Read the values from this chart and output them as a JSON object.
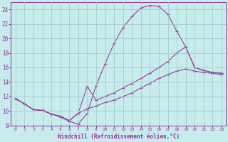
{
  "background_color": "#c6ecec",
  "grid_color": "#a0c8c8",
  "line_color": "#993399",
  "spine_color": "#993399",
  "xlabel": "Windchill (Refroidissement éolien,°C)",
  "xmin": -0.5,
  "xmax": 23.5,
  "ymin": 8,
  "ymax": 25,
  "ytick_vals": [
    8,
    10,
    12,
    14,
    16,
    18,
    20,
    22,
    24
  ],
  "xtick_vals": [
    0,
    1,
    2,
    3,
    4,
    5,
    6,
    7,
    8,
    9,
    10,
    11,
    12,
    13,
    14,
    15,
    16,
    17,
    18,
    19,
    20,
    21,
    22,
    23
  ],
  "curve1_x": [
    0,
    1,
    2,
    3,
    4,
    5,
    6,
    7,
    8,
    9,
    10,
    11,
    12,
    13,
    14,
    15,
    16,
    17,
    18,
    19,
    20,
    21,
    22,
    23
  ],
  "curve1_y": [
    11.7,
    11.0,
    10.2,
    10.1,
    9.6,
    9.2,
    8.6,
    8.2,
    9.7,
    13.5,
    16.5,
    19.3,
    21.5,
    23.0,
    24.2,
    24.5,
    24.4,
    23.3,
    21.0,
    18.8,
    16.0,
    15.6,
    15.3,
    15.2
  ],
  "curve2_x": [
    0,
    1,
    2,
    3,
    4,
    5,
    6,
    7,
    8,
    9,
    10,
    11,
    12,
    13,
    14,
    15,
    16,
    17,
    18,
    19,
    20,
    21,
    22,
    23
  ],
  "curve2_y": [
    11.7,
    11.0,
    10.2,
    10.1,
    9.6,
    9.3,
    8.7,
    9.7,
    13.4,
    11.5,
    12.0,
    12.5,
    13.2,
    13.8,
    14.5,
    15.2,
    16.0,
    16.8,
    18.0,
    18.8,
    16.0,
    15.6,
    15.3,
    15.2
  ],
  "curve3_x": [
    0,
    1,
    2,
    3,
    4,
    5,
    6,
    7,
    8,
    9,
    10,
    11,
    12,
    13,
    14,
    15,
    16,
    17,
    18,
    19,
    20,
    21,
    22,
    23
  ],
  "curve3_y": [
    11.7,
    11.0,
    10.2,
    10.1,
    9.6,
    9.3,
    8.7,
    9.7,
    10.3,
    10.7,
    11.2,
    11.5,
    12.0,
    12.5,
    13.2,
    13.8,
    14.5,
    15.0,
    15.5,
    15.8,
    15.5,
    15.3,
    15.2,
    15.0
  ]
}
